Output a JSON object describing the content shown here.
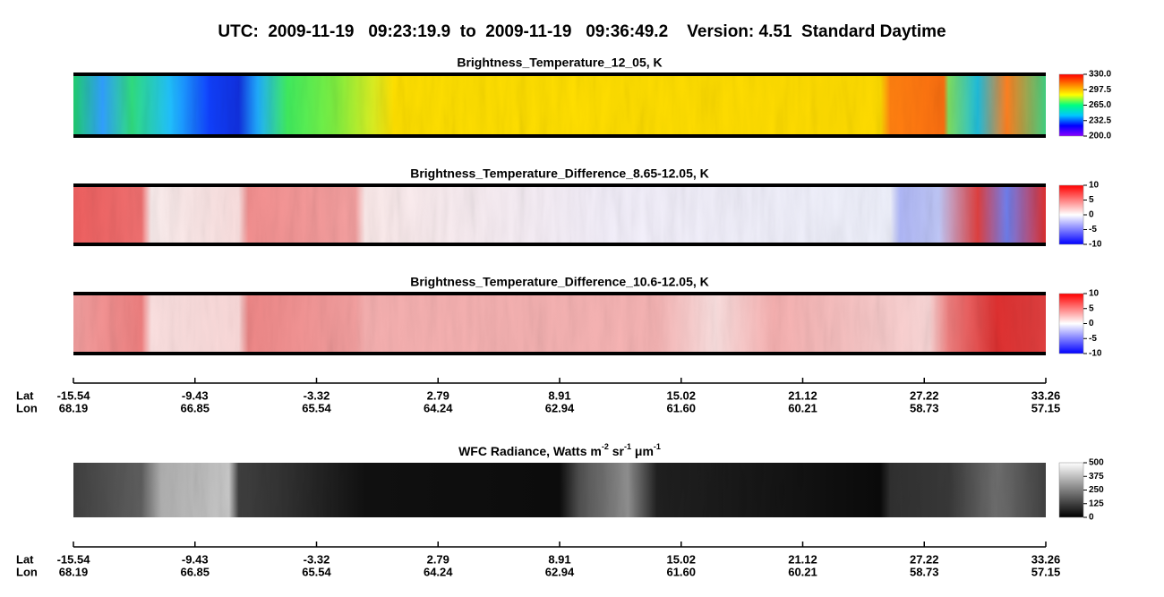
{
  "title": "UTC:  2009-11-19   09:23:19.9  to  2009-11-19   09:36:49.2    Version: 4.51  Standard Daytime",
  "chart_data": [
    {
      "type": "heatmap",
      "title": "Brightness_Temperature_12_05, K",
      "clim": [
        200,
        330
      ],
      "colormap": [
        "#8a00ff",
        "#0000ff",
        "#00c8ff",
        "#00ff80",
        "#ffff00",
        "#ff8000",
        "#ff0000"
      ],
      "cticks": [
        {
          "value": 330,
          "label": "330.0"
        },
        297.5,
        {
          "value": 265,
          "label": "265.0"
        },
        232.5,
        {
          "value": 200,
          "label": "200.0"
        }
      ]
    },
    {
      "type": "heatmap",
      "title": "Brightness_Temperature_Difference_8.65-12.05, K",
      "clim": [
        -10,
        10
      ],
      "colormap": [
        "#0000ff",
        "#ffffff",
        "#ff0000"
      ],
      "cticks": [
        10,
        5,
        0,
        -5,
        -10
      ]
    },
    {
      "type": "heatmap",
      "title": "Brightness_Temperature_Difference_10.6-12.05, K",
      "clim": [
        -10,
        10
      ],
      "colormap": [
        "#0000ff",
        "#ffffff",
        "#ff0000"
      ],
      "cticks": [
        10,
        5,
        0,
        -5,
        -10
      ],
      "axis": {
        "labels": [
          "Lat",
          "Lon"
        ],
        "lat": [
          -15.54,
          -9.43,
          -3.32,
          2.79,
          8.91,
          15.02,
          21.12,
          27.22,
          33.26
        ],
        "lon": [
          68.19,
          66.85,
          65.54,
          64.24,
          62.94,
          {
            "value": 61.6,
            "label": "61.60"
          },
          60.21,
          58.73,
          57.15
        ]
      }
    },
    {
      "type": "heatmap",
      "title": [
        "WFC Radiance, Watts m",
        " sr",
        " μm"
      ],
      "title_superscripts": [
        "-2",
        "-1",
        "-1"
      ],
      "clim": [
        0,
        500
      ],
      "colormap": [
        "#000000",
        "#ffffff"
      ],
      "cticks": [
        500,
        375,
        250,
        125,
        0
      ],
      "axis": {
        "labels": [
          "Lat",
          "Lon"
        ],
        "lat": [
          -15.54,
          -9.43,
          -3.32,
          2.79,
          8.91,
          15.02,
          21.12,
          27.22,
          33.26
        ],
        "lon": [
          68.19,
          66.85,
          65.54,
          64.24,
          62.94,
          {
            "value": 61.6,
            "label": "61.60"
          },
          60.21,
          58.73,
          57.15
        ]
      }
    }
  ]
}
